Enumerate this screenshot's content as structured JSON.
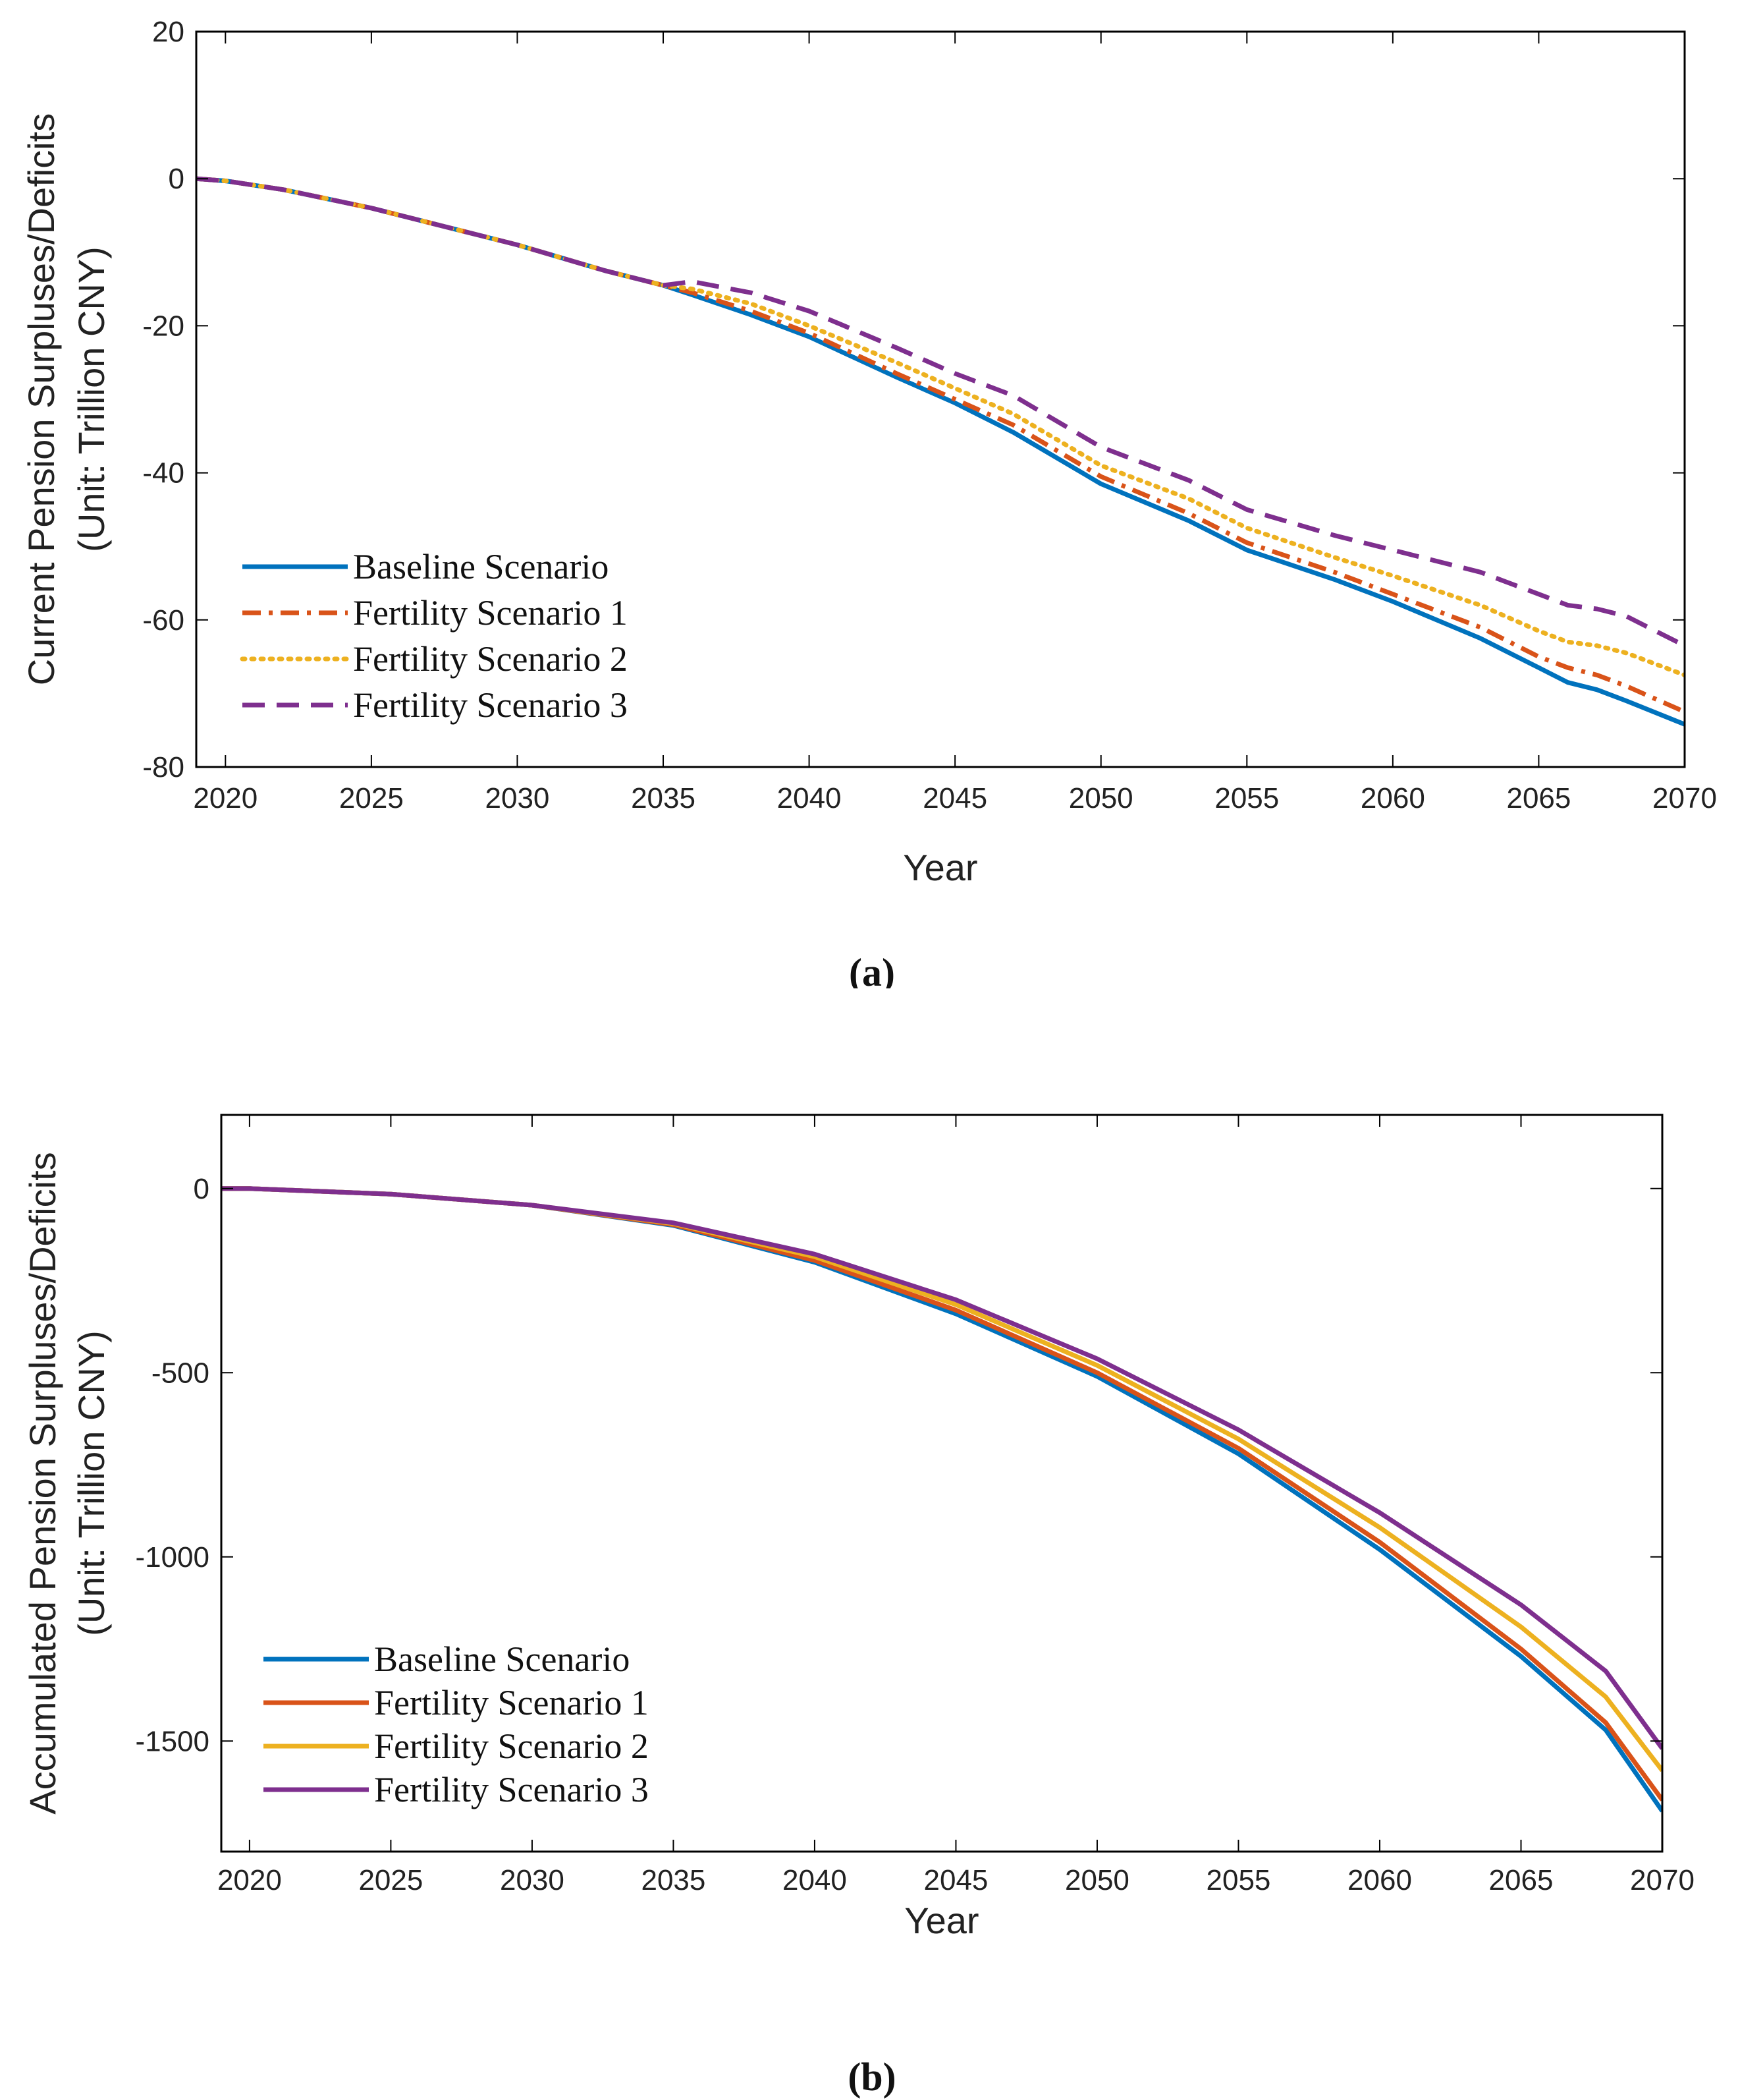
{
  "chart_data": [
    {
      "type": "line",
      "panel_label": "(a)",
      "xlabel": "Year",
      "ylabel_line1": "Current Pension Surpluses/Deficits",
      "ylabel_line2": "(Unit: Trillion CNY)",
      "xlim": [
        2019,
        2070
      ],
      "ylim": [
        -80,
        20
      ],
      "xticks": [
        2020,
        2025,
        2030,
        2035,
        2040,
        2045,
        2050,
        2055,
        2060,
        2065,
        2070
      ],
      "yticks": [
        20,
        0,
        -20,
        -40,
        -60,
        -80
      ],
      "legend_position": "bottom-left",
      "x": [
        2019,
        2020,
        2022,
        2025,
        2028,
        2030,
        2033,
        2035,
        2036,
        2038,
        2040,
        2043,
        2045,
        2047,
        2050,
        2053,
        2055,
        2058,
        2060,
        2063,
        2065,
        2066,
        2067,
        2068,
        2070
      ],
      "series": [
        {
          "name": "Baseline Scenario",
          "color": "#0072BD",
          "dash": "solid",
          "values": [
            0,
            -0.3,
            -1.5,
            -4,
            -7,
            -9,
            -12.5,
            -14.5,
            -15.8,
            -18.5,
            -21.5,
            -27,
            -30.5,
            -34.5,
            -41.5,
            -46.5,
            -50.5,
            -54.5,
            -57.5,
            -62.5,
            -66.5,
            -68.5,
            -69.5,
            -71,
            -74.2
          ]
        },
        {
          "name": "Fertility Scenario 1",
          "color": "#D95319",
          "dash": "dashdot",
          "values": [
            0,
            -0.3,
            -1.5,
            -4,
            -7,
            -9,
            -12.5,
            -14.5,
            -15.5,
            -18,
            -21,
            -26.5,
            -30,
            -33.5,
            -40.5,
            -45.5,
            -49.5,
            -53.5,
            -56.5,
            -61,
            -65,
            -66.5,
            -67.5,
            -69,
            -72.5
          ]
        },
        {
          "name": "Fertility Scenario 2",
          "color": "#EDB120",
          "dash": "dotted",
          "values": [
            0,
            -0.3,
            -1.5,
            -4,
            -7,
            -9,
            -12.5,
            -14.5,
            -15,
            -17,
            -20,
            -25,
            -28.5,
            -32,
            -39,
            -43.5,
            -47.5,
            -51.5,
            -54,
            -58,
            -61.5,
            -63,
            -63.5,
            -64.5,
            -67.5
          ]
        },
        {
          "name": "Fertility Scenario 3",
          "color": "#7E2F8E",
          "dash": "dashed",
          "values": [
            0,
            -0.3,
            -1.5,
            -4,
            -7,
            -9,
            -12.5,
            -14.5,
            -14,
            -15.5,
            -18,
            -23,
            -26.5,
            -29.5,
            -36.5,
            -41,
            -45,
            -48.5,
            -50.5,
            -53.5,
            -56.5,
            -58,
            -58.5,
            -59.5,
            -63.5
          ]
        }
      ]
    },
    {
      "type": "line",
      "panel_label": "(b)",
      "xlabel": "Year",
      "ylabel_line1": "Accumulated Pension Surpluses/Deficits",
      "ylabel_line2": "(Unit: Trillion CNY)",
      "xlim": [
        2019,
        2070
      ],
      "ylim": [
        -1800,
        200
      ],
      "xticks": [
        2020,
        2025,
        2030,
        2035,
        2040,
        2045,
        2050,
        2055,
        2060,
        2065,
        2070
      ],
      "yticks": [
        0,
        -500,
        -1000,
        -1500
      ],
      "legend_position": "bottom-left",
      "x": [
        2019,
        2020,
        2025,
        2030,
        2035,
        2040,
        2045,
        2050,
        2055,
        2060,
        2065,
        2068,
        2070
      ],
      "series": [
        {
          "name": "Baseline Scenario",
          "color": "#0072BD",
          "dash": "solid",
          "values": [
            0,
            0,
            -15,
            -45,
            -100,
            -200,
            -340,
            -510,
            -720,
            -980,
            -1270,
            -1470,
            -1690
          ]
        },
        {
          "name": "Fertility Scenario 1",
          "color": "#D95319",
          "dash": "solid",
          "values": [
            0,
            0,
            -15,
            -45,
            -98,
            -195,
            -330,
            -500,
            -705,
            -960,
            -1250,
            -1450,
            -1660
          ]
        },
        {
          "name": "Fertility Scenario 2",
          "color": "#EDB120",
          "dash": "solid",
          "values": [
            0,
            0,
            -15,
            -45,
            -95,
            -185,
            -315,
            -480,
            -680,
            -920,
            -1190,
            -1380,
            -1580
          ]
        },
        {
          "name": "Fertility Scenario 3",
          "color": "#7E2F8E",
          "dash": "solid",
          "values": [
            0,
            0,
            -15,
            -45,
            -93,
            -178,
            -302,
            -462,
            -655,
            -880,
            -1130,
            -1310,
            -1520
          ]
        }
      ]
    }
  ]
}
